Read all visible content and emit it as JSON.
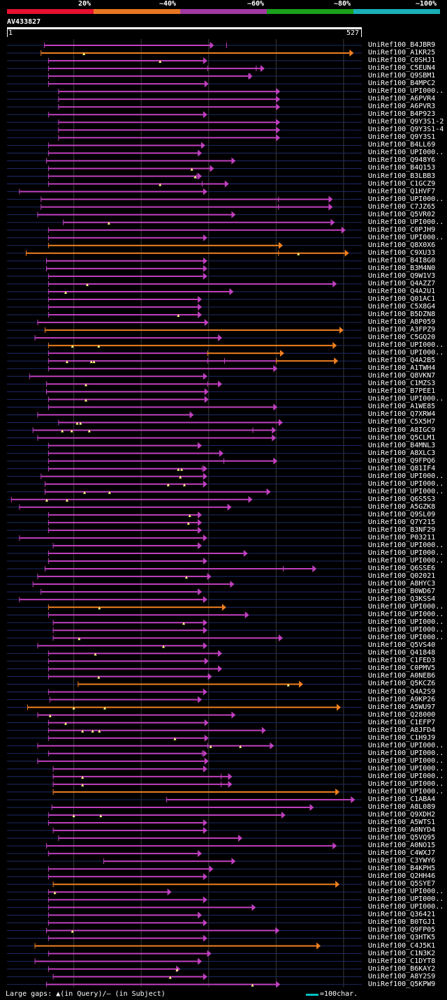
{
  "legend": {
    "labels": [
      "20%",
      "~40%",
      "~60%",
      "~80%",
      "~100%"
    ],
    "segments": [
      {
        "color": "#e8102f"
      },
      {
        "color": "#e87722"
      },
      {
        "color": "#a03aa0"
      },
      {
        "color": "#1aa01a"
      },
      {
        "color": "#1ab0b8"
      }
    ]
  },
  "query": {
    "id": "AV433827",
    "start": "1",
    "end": "527",
    "length": 527
  },
  "colors": {
    "purple": "#c040c0",
    "orange": "#f08020",
    "track": "#1e2a66",
    "grid": "#3a3a3a",
    "gap": "#ffff80"
  },
  "hits": [
    {
      "label": "UniRef100_B4JBR9",
      "start": 57,
      "end": 308,
      "color": "purple",
      "ticks": [
        326
      ]
    },
    {
      "label": "UniRef100_A1KR25",
      "start": 52,
      "end": 515,
      "color": "orange",
      "gaps": [
        115
      ]
    },
    {
      "label": "UniRef100_C0SHJ1",
      "start": 63,
      "end": 298,
      "color": "purple",
      "gaps": [
        228
      ]
    },
    {
      "label": "UniRef100_C5EUN4",
      "start": 63,
      "end": 383,
      "color": "purple",
      "ticks": [
        298,
        370
      ]
    },
    {
      "label": "UniRef100_Q9SBM1",
      "start": 63,
      "end": 365,
      "color": "purple",
      "ticks": [
        361
      ]
    },
    {
      "label": "UniRef100_B4MPC2",
      "start": 63,
      "end": 300,
      "color": "purple"
    },
    {
      "label": "UniRef100_UPI000..",
      "start": 78,
      "end": 406,
      "color": "purple"
    },
    {
      "label": "UniRef100_A6PVR4",
      "start": 78,
      "end": 406,
      "color": "purple"
    },
    {
      "label": "UniRef100_A6PVR3",
      "start": 78,
      "end": 406,
      "color": "purple"
    },
    {
      "label": "UniRef100_B4P923",
      "start": 63,
      "end": 298,
      "color": "purple"
    },
    {
      "label": "UniRef100_Q9Y3S1-2",
      "start": 78,
      "end": 406,
      "color": "purple"
    },
    {
      "label": "UniRef100_Q9Y3S1-4",
      "start": 78,
      "end": 406,
      "color": "purple"
    },
    {
      "label": "UniRef100_Q9Y3S1",
      "start": 78,
      "end": 406,
      "color": "purple"
    },
    {
      "label": "UniRef100_B4LL69",
      "start": 63,
      "end": 295,
      "color": "purple"
    },
    {
      "label": "UniRef100_UPI000..",
      "start": 63,
      "end": 290,
      "color": "purple"
    },
    {
      "label": "UniRef100_Q948Y6",
      "start": 60,
      "end": 340,
      "color": "purple"
    },
    {
      "label": "UniRef100_B4Q153",
      "start": 63,
      "end": 308,
      "color": "purple",
      "gaps": [
        275
      ]
    },
    {
      "label": "UniRef100_B3LBB3",
      "start": 63,
      "end": 290,
      "color": "purple",
      "ticks": [
        282
      ],
      "gaps": [
        280
      ]
    },
    {
      "label": "UniRef100_C1GCZ9",
      "start": 63,
      "end": 330,
      "color": "purple",
      "ticks": [
        290
      ],
      "gaps": [
        228
      ]
    },
    {
      "label": "UniRef100_Q1HVF7",
      "start": 20,
      "end": 298,
      "color": "purple"
    },
    {
      "label": "UniRef100_UPI000..",
      "start": 52,
      "end": 484,
      "color": "purple",
      "ticks": [
        403
      ]
    },
    {
      "label": "UniRef100_C7JZ65",
      "start": 52,
      "end": 484,
      "color": "purple",
      "ticks": [
        403
      ]
    },
    {
      "label": "UniRef100_Q5VR02",
      "start": 47,
      "end": 340,
      "color": "purple"
    },
    {
      "label": "UniRef100_UPI000..",
      "start": 85,
      "end": 487,
      "color": "purple",
      "gaps": [
        152
      ]
    },
    {
      "label": "UniRef100_C0PJH9",
      "start": 63,
      "end": 503,
      "color": "purple"
    },
    {
      "label": "UniRef100_UPI000..",
      "start": 63,
      "end": 298,
      "color": "purple"
    },
    {
      "label": "UniRef100_Q8X0X6",
      "start": 63,
      "end": 410,
      "color": "orange"
    },
    {
      "label": "UniRef100_C9XU33",
      "start": 30,
      "end": 508,
      "color": "orange",
      "ticks": [
        403
      ],
      "gaps": [
        433
      ]
    },
    {
      "label": "UniRef100_B4I8G0",
      "start": 60,
      "end": 298,
      "color": "purple"
    },
    {
      "label": "UniRef100_B3M4N0",
      "start": 60,
      "end": 298,
      "color": "purple"
    },
    {
      "label": "UniRef100_Q9W1V3",
      "start": 63,
      "end": 298,
      "color": "purple"
    },
    {
      "label": "UniRef100_Q4AZZ7",
      "start": 63,
      "end": 490,
      "color": "purple",
      "gaps": [
        120
      ]
    },
    {
      "label": "UniRef100_Q4A2U1",
      "start": 63,
      "end": 337,
      "color": "purple",
      "gaps": [
        88
      ]
    },
    {
      "label": "UniRef100_Q01AC1",
      "start": 63,
      "end": 290,
      "color": "purple"
    },
    {
      "label": "UniRef100_C5X8G4",
      "start": 63,
      "end": 290,
      "color": "purple"
    },
    {
      "label": "UniRef100_B5DZN8",
      "start": 63,
      "end": 290,
      "color": "purple",
      "gaps": [
        255
      ]
    },
    {
      "label": "UniRef100_A8P059",
      "start": 47,
      "end": 300,
      "color": "purple"
    },
    {
      "label": "UniRef100_A3FPZ9",
      "start": 58,
      "end": 500,
      "color": "orange"
    },
    {
      "label": "UniRef100_C5GQ20",
      "start": 43,
      "end": 320,
      "color": "purple"
    },
    {
      "label": "UniRef100_UPI000..",
      "start": 63,
      "end": 490,
      "color": "orange",
      "gaps": [
        98,
        137
      ]
    },
    {
      "label": "UniRef100_UPI000..",
      "start": 63,
      "end": 412,
      "color": "purple",
      "ticks": [
        298
      ],
      "orange_from": 298
    },
    {
      "label": "UniRef100_Q4A2B5",
      "start": 63,
      "end": 492,
      "color": "purple",
      "ticks": [
        298,
        323,
        400
      ],
      "orange_from": 400,
      "gaps": [
        90,
        126,
        130
      ]
    },
    {
      "label": "UniRef100_A1TWH4",
      "start": 63,
      "end": 402,
      "color": "purple"
    },
    {
      "label": "UniRef100_Q8VKN7",
      "start": 35,
      "end": 298,
      "color": "purple"
    },
    {
      "label": "UniRef100_C1MZS3",
      "start": 60,
      "end": 320,
      "color": "purple",
      "ticks": [
        298
      ],
      "gaps": [
        118
      ]
    },
    {
      "label": "UniRef100_B7PEE1",
      "start": 60,
      "end": 300,
      "color": "purple"
    },
    {
      "label": "UniRef100_UPI000..",
      "start": 63,
      "end": 300,
      "color": "purple",
      "gaps": [
        118
      ]
    },
    {
      "label": "UniRef100_A1WE85",
      "start": 63,
      "end": 402,
      "color": "purple"
    },
    {
      "label": "UniRef100_Q7XRW4",
      "start": 47,
      "end": 278,
      "color": "purple"
    },
    {
      "label": "UniRef100_C5X5H7",
      "start": 78,
      "end": 410,
      "color": "purple",
      "gaps": [
        105,
        110
      ]
    },
    {
      "label": "UniRef100_A8IGC9",
      "start": 40,
      "end": 400,
      "color": "purple",
      "ticks": [
        365
      ],
      "gaps": [
        83,
        97,
        123
      ]
    },
    {
      "label": "UniRef100_Q5CLM1",
      "start": 47,
      "end": 400,
      "color": "purple"
    },
    {
      "label": "UniRef100_B4MNL3",
      "start": 63,
      "end": 290,
      "color": "purple"
    },
    {
      "label": "UniRef100_A8XLC3",
      "start": 63,
      "end": 322,
      "color": "purple"
    },
    {
      "label": "UniRef100_Q9FPQ6",
      "start": 63,
      "end": 402,
      "color": "purple",
      "ticks": [
        322
      ]
    },
    {
      "label": "UniRef100_Q81IF4",
      "start": 63,
      "end": 298,
      "color": "purple",
      "ticks": [
        290
      ],
      "gaps": [
        255,
        260
      ]
    },
    {
      "label": "UniRef100_UPI000..",
      "start": 52,
      "end": 298,
      "color": "purple",
      "gaps": [
        258
      ]
    },
    {
      "label": "UniRef100_UPI000..",
      "start": 58,
      "end": 298,
      "color": "purple",
      "gaps": [
        240,
        264
      ]
    },
    {
      "label": "UniRef100_UPI000..",
      "start": 58,
      "end": 392,
      "color": "purple",
      "gaps": [
        116,
        153
      ]
    },
    {
      "label": "UniRef100_Q6S5S3",
      "start": 8,
      "end": 365,
      "color": "purple",
      "gaps": [
        60,
        90
      ]
    },
    {
      "label": "UniRef100_A5GZK8",
      "start": 20,
      "end": 334,
      "color": "purple"
    },
    {
      "label": "UniRef100_Q9SL09",
      "start": 63,
      "end": 290,
      "color": "purple",
      "gaps": [
        272
      ]
    },
    {
      "label": "UniRef100_Q7Y215",
      "start": 63,
      "end": 290,
      "color": "purple",
      "gaps": [
        270
      ]
    },
    {
      "label": "UniRef100_B3NF29",
      "start": 63,
      "end": 290,
      "color": "purple"
    },
    {
      "label": "UniRef100_P03211",
      "start": 20,
      "end": 298,
      "color": "purple"
    },
    {
      "label": "UniRef100_UPI000..",
      "start": 70,
      "end": 290,
      "color": "purple"
    },
    {
      "label": "UniRef100_UPI000..",
      "start": 63,
      "end": 358,
      "color": "purple"
    },
    {
      "label": "UniRef100_UPI000..",
      "start": 63,
      "end": 298,
      "color": "purple"
    },
    {
      "label": "UniRef100_Q6SSE6",
      "start": 58,
      "end": 460,
      "color": "purple",
      "ticks": [
        410
      ]
    },
    {
      "label": "UniRef100_Q02021",
      "start": 47,
      "end": 304,
      "color": "purple",
      "gaps": [
        267
      ]
    },
    {
      "label": "UniRef100_A8HYC3",
      "start": 40,
      "end": 338,
      "color": "purple"
    },
    {
      "label": "UniRef100_B0WD67",
      "start": 52,
      "end": 290,
      "color": "purple"
    },
    {
      "label": "UniRef100_Q3KSS4",
      "start": 20,
      "end": 298,
      "color": "purple"
    },
    {
      "label": "UniRef100_UPI000..",
      "start": 63,
      "end": 326,
      "color": "orange",
      "gaps": [
        138
      ]
    },
    {
      "label": "UniRef100_UPI000..",
      "start": 63,
      "end": 360,
      "color": "purple"
    },
    {
      "label": "UniRef100_UPI000..",
      "start": 70,
      "end": 298,
      "color": "purple",
      "gaps": [
        263
      ]
    },
    {
      "label": "UniRef100_UPI000..",
      "start": 70,
      "end": 298,
      "color": "purple"
    },
    {
      "label": "UniRef100_UPI000..",
      "start": 70,
      "end": 410,
      "color": "purple",
      "gaps": [
        108
      ]
    },
    {
      "label": "UniRef100_Q5VS40",
      "start": 47,
      "end": 298,
      "color": "purple",
      "gaps": [
        233
      ]
    },
    {
      "label": "UniRef100_Q41848",
      "start": 63,
      "end": 320,
      "color": "purple",
      "gaps": [
        132
      ]
    },
    {
      "label": "UniRef100_C1FED3",
      "start": 63,
      "end": 300,
      "color": "purple"
    },
    {
      "label": "UniRef100_C0PMV5",
      "start": 63,
      "end": 320,
      "color": "purple"
    },
    {
      "label": "UniRef100_A0NEB6",
      "start": 63,
      "end": 305,
      "color": "purple",
      "gaps": [
        137
      ]
    },
    {
      "label": "UniRef100_Q5KCZ6",
      "start": 107,
      "end": 440,
      "color": "orange",
      "gaps": [
        418
      ]
    },
    {
      "label": "UniRef100_Q4A2S9",
      "start": 63,
      "end": 298,
      "color": "purple"
    },
    {
      "label": "UniRef100_A9KP26",
      "start": 65,
      "end": 290,
      "color": "purple"
    },
    {
      "label": "UniRef100_A5WU97",
      "start": 32,
      "end": 496,
      "color": "orange",
      "gaps": [
        100,
        146
      ]
    },
    {
      "label": "UniRef100_Q28000",
      "start": 47,
      "end": 340,
      "color": "purple",
      "gaps": [
        65
      ]
    },
    {
      "label": "UniRef100_C1EFP7",
      "start": 63,
      "end": 300,
      "color": "purple",
      "gaps": [
        88
      ]
    },
    {
      "label": "UniRef100_A8JFD4",
      "start": 63,
      "end": 385,
      "color": "purple",
      "gaps": [
        113,
        128,
        138
      ]
    },
    {
      "label": "UniRef100_C1H9J9",
      "start": 63,
      "end": 300,
      "color": "purple",
      "gaps": [
        250
      ]
    },
    {
      "label": "UniRef100_UPI000..",
      "start": 47,
      "end": 397,
      "color": "purple",
      "ticks": [
        298
      ],
      "gaps": [
        303,
        347
      ]
    },
    {
      "label": "UniRef100_UPI000..",
      "start": 63,
      "end": 298,
      "color": "purple",
      "ticks": [
        290
      ]
    },
    {
      "label": "UniRef100_UPI000..",
      "start": 47,
      "end": 300,
      "color": "purple",
      "ticks": [
        294
      ]
    },
    {
      "label": "UniRef100_UPI000..",
      "start": 70,
      "end": 298,
      "color": "purple"
    },
    {
      "label": "UniRef100_UPI000..",
      "start": 70,
      "end": 335,
      "color": "purple",
      "ticks": [
        318
      ],
      "gaps": [
        113
      ]
    },
    {
      "label": "UniRef100_UPI000..",
      "start": 70,
      "end": 335,
      "color": "purple",
      "ticks": [
        318
      ],
      "gaps": [
        113
      ]
    },
    {
      "label": "UniRef100_UPI000..",
      "start": 70,
      "end": 494,
      "color": "orange"
    },
    {
      "label": "UniRef100_C1ABA4",
      "start": 238,
      "end": 517,
      "color": "purple"
    },
    {
      "label": "UniRef100_A8L089",
      "start": 68,
      "end": 456,
      "color": "purple"
    },
    {
      "label": "UniRef100_Q9XDH2",
      "start": 63,
      "end": 414,
      "color": "purple",
      "gaps": [
        100,
        140
      ]
    },
    {
      "label": "UniRef100_A5WTS1",
      "start": 63,
      "end": 298,
      "color": "purple"
    },
    {
      "label": "UniRef100_A0NYD4",
      "start": 70,
      "end": 298,
      "color": "purple"
    },
    {
      "label": "UniRef100_Q5VQ95",
      "start": 78,
      "end": 350,
      "color": "purple"
    },
    {
      "label": "UniRef100_A0NO15",
      "start": 60,
      "end": 490,
      "color": "purple"
    },
    {
      "label": "UniRef100_C4WXJ7",
      "start": 63,
      "end": 290,
      "color": "purple"
    },
    {
      "label": "UniRef100_C3YWY6",
      "start": 145,
      "end": 340,
      "color": "purple"
    },
    {
      "label": "UniRef100_B4KPH5",
      "start": 63,
      "end": 307,
      "color": "purple"
    },
    {
      "label": "UniRef100_Q2HH46",
      "start": 63,
      "end": 298,
      "color": "purple"
    },
    {
      "label": "UniRef100_Q5SYE7",
      "start": 70,
      "end": 494,
      "color": "orange"
    },
    {
      "label": "UniRef100_UPI000..",
      "start": 63,
      "end": 245,
      "color": "purple",
      "gaps": [
        72
      ]
    },
    {
      "label": "UniRef100_UPI000..",
      "start": 63,
      "end": 298,
      "color": "purple"
    },
    {
      "label": "UniRef100_UPI000..",
      "start": 63,
      "end": 370,
      "color": "purple"
    },
    {
      "label": "UniRef100_Q36421",
      "start": 63,
      "end": 290,
      "color": "purple"
    },
    {
      "label": "UniRef100_B0TGJ1",
      "start": 63,
      "end": 298,
      "color": "purple"
    },
    {
      "label": "UniRef100_Q9FP05",
      "start": 60,
      "end": 405,
      "color": "purple",
      "gaps": [
        98
      ]
    },
    {
      "label": "UniRef100_Q3HTK5",
      "start": 63,
      "end": 298,
      "color": "purple"
    },
    {
      "label": "UniRef100_C4J5K1",
      "start": 43,
      "end": 466,
      "color": "orange"
    },
    {
      "label": "UniRef100_C1N3K2",
      "start": 63,
      "end": 304,
      "color": "purple"
    },
    {
      "label": "UniRef100_C1DYT8",
      "start": 43,
      "end": 290,
      "color": "purple"
    },
    {
      "label": "UniRef100_B6KAY2",
      "start": 63,
      "end": 258,
      "color": "purple",
      "gaps": [
        253
      ]
    },
    {
      "label": "UniRef100_A8Y2S9",
      "start": 70,
      "end": 298,
      "color": "purple",
      "gaps": [
        243
      ]
    },
    {
      "label": "UniRef100_Q5KPW9",
      "start": 60,
      "end": 406,
      "color": "purple",
      "gaps": [
        365
      ]
    }
  ],
  "footer": {
    "text": "Large gaps: ▲(in Query)/– (in Subject)",
    "key_text": "=100char."
  }
}
